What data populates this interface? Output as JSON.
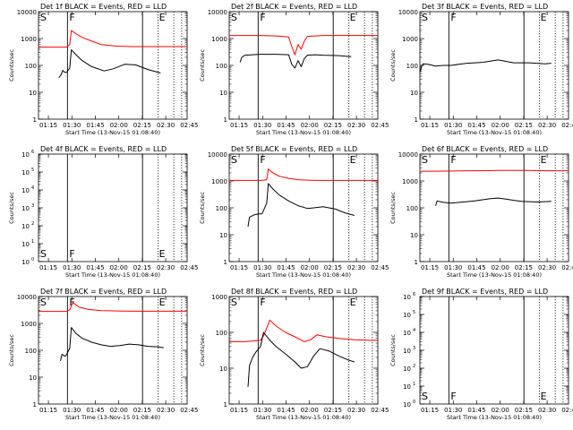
{
  "colors": {
    "events": "#000000",
    "lld": "#ff0000",
    "axes": "#000000",
    "background": "#ffffff"
  },
  "xlabel": "Start Time (13-Nov-15 01:08:40)",
  "ylabel": "Counts/sec",
  "xticks": [
    "01:15",
    "01:30",
    "01:45",
    "02:00",
    "02:15",
    "02:30",
    "02:45"
  ],
  "xrange_minutes": [
    0,
    95
  ],
  "tick_minutes": [
    6.33,
    21.33,
    36.33,
    51.33,
    66.33,
    81.33,
    96.33
  ],
  "markers": {
    "start_label": "S",
    "flare_label": "F",
    "end_label": "E"
  },
  "vlines": {
    "solid_minutes": [
      18.5,
      66.5
    ],
    "dotted_minutes": [
      76.5,
      86.5,
      91.5
    ]
  },
  "chart_data": [
    {
      "type": "line",
      "title": "Det 1f BLACK = Events, RED = LLD",
      "scale": "log",
      "ylim": [
        1,
        10000
      ],
      "yticks": [
        "1",
        "10",
        "100",
        "1000",
        "10000"
      ],
      "markers_shown": [
        "S",
        "F",
        "E"
      ],
      "series": [
        {
          "name": "LLD",
          "x": [
            0,
            9,
            12,
            14,
            18,
            20,
            21,
            24,
            28,
            34,
            40,
            50,
            60,
            70,
            80,
            90,
            95
          ],
          "y": [
            480,
            480,
            480,
            480,
            480,
            600,
            2000,
            1500,
            1100,
            800,
            600,
            520,
            500,
            500,
            500,
            500,
            500
          ]
        },
        {
          "name": "Events",
          "x": [
            13,
            14.5,
            15.5,
            16,
            17,
            18,
            20,
            21,
            24,
            28,
            34,
            42,
            48,
            55,
            62,
            70,
            78
          ],
          "y": [
            35,
            45,
            65,
            60,
            55,
            55,
            80,
            380,
            250,
            150,
            90,
            62,
            75,
            110,
            105,
            70,
            52
          ]
        }
      ]
    },
    {
      "type": "line",
      "title": "Det 2f BLACK = Events, RED = LLD",
      "scale": "log",
      "ylim": [
        1,
        10000
      ],
      "yticks": [
        "1",
        "10",
        "100",
        "1000",
        "10000"
      ],
      "markers_shown": [
        "S",
        "F",
        "E"
      ],
      "series": [
        {
          "name": "LLD",
          "x": [
            0,
            10,
            20,
            30,
            38,
            40,
            42,
            44,
            46,
            48,
            50,
            60,
            70,
            80,
            95
          ],
          "y": [
            1300,
            1300,
            1300,
            1250,
            1150,
            500,
            250,
            600,
            400,
            800,
            1200,
            1300,
            1300,
            1300,
            1300
          ]
        },
        {
          "name": "Events",
          "x": [
            7,
            8,
            10,
            15,
            20,
            30,
            38,
            40,
            42,
            44,
            46,
            48,
            50,
            55,
            60,
            70,
            78
          ],
          "y": [
            130,
            200,
            240,
            250,
            260,
            260,
            250,
            110,
            80,
            150,
            90,
            180,
            240,
            250,
            240,
            230,
            210
          ]
        }
      ]
    },
    {
      "type": "line",
      "title": "Det 3f BLACK = Events, RED = LLD",
      "scale": "log",
      "ylim": [
        1,
        10000
      ],
      "yticks": [
        "1",
        "10",
        "100",
        "1000",
        "10000"
      ],
      "markers_shown": [
        "S",
        "F",
        "E"
      ],
      "series": [
        {
          "name": "Events",
          "x": [
            0,
            1,
            2,
            5,
            10,
            15,
            20,
            25,
            30,
            40,
            50,
            60,
            70,
            80,
            84
          ],
          "y": [
            55,
            90,
            115,
            110,
            95,
            100,
            100,
            110,
            120,
            130,
            160,
            125,
            125,
            115,
            120
          ]
        }
      ]
    },
    {
      "type": "line",
      "title": "Det 4f BLACK = Events, RED = LLD",
      "scale": "log",
      "ylim": [
        1,
        1000000
      ],
      "yticks": [
        "10^0",
        "10^1",
        "10^2",
        "10^3",
        "10^4",
        "10^5",
        "10^6"
      ],
      "markers_shown": [
        "S",
        "F",
        "E"
      ],
      "series": []
    },
    {
      "type": "line",
      "title": "Det 5f BLACK = Events, RED = LLD",
      "scale": "log",
      "ylim": [
        1,
        10000
      ],
      "yticks": [
        "1",
        "10",
        "100",
        "1000",
        "10000"
      ],
      "markers_shown": [
        "S",
        "F",
        "E"
      ],
      "series": [
        {
          "name": "LLD",
          "x": [
            0,
            10,
            20,
            24,
            25,
            28,
            32,
            38,
            45,
            55,
            65,
            75,
            85,
            95
          ],
          "y": [
            1050,
            1050,
            1050,
            1100,
            2800,
            2000,
            1500,
            1250,
            1100,
            1050,
            1050,
            1050,
            1050,
            1050
          ]
        },
        {
          "name": "Events",
          "x": [
            12,
            13,
            16,
            19,
            21,
            24,
            25,
            28,
            32,
            38,
            44,
            50,
            54,
            60,
            68,
            74,
            80
          ],
          "y": [
            20,
            45,
            55,
            60,
            60,
            150,
            800,
            500,
            300,
            180,
            120,
            95,
            100,
            110,
            90,
            65,
            52
          ]
        }
      ]
    },
    {
      "type": "line",
      "title": "Det 6f BLACK = Events, RED = LLD",
      "scale": "log",
      "ylim": [
        1,
        10000
      ],
      "yticks": [
        "1",
        "10",
        "100",
        "1000",
        "10000"
      ],
      "markers_shown": [
        "S",
        "F",
        "E"
      ],
      "series": [
        {
          "name": "LLD",
          "x": [
            0,
            10,
            20,
            30,
            40,
            50,
            60,
            70,
            80,
            90,
            95
          ],
          "y": [
            2300,
            2300,
            2350,
            2400,
            2400,
            2450,
            2450,
            2450,
            2400,
            2400,
            2400
          ]
        },
        {
          "name": "Events",
          "x": [
            10,
            11,
            15,
            20,
            25,
            30,
            35,
            40,
            45,
            50,
            55,
            60,
            65,
            70,
            75,
            80,
            84
          ],
          "y": [
            120,
            180,
            160,
            150,
            160,
            170,
            180,
            200,
            220,
            230,
            210,
            190,
            175,
            170,
            165,
            170,
            175
          ]
        }
      ]
    },
    {
      "type": "line",
      "title": "Det 7f BLACK = Events, RED = LLD",
      "scale": "log",
      "ylim": [
        1,
        10000
      ],
      "yticks": [
        "1",
        "10",
        "100",
        "1000",
        "10000"
      ],
      "markers_shown": [
        "S",
        "F",
        "E"
      ],
      "series": [
        {
          "name": "LLD",
          "x": [
            0,
            10,
            18,
            20,
            22,
            26,
            32,
            40,
            50,
            60,
            70,
            80,
            95
          ],
          "y": [
            2800,
            2800,
            2800,
            3200,
            6000,
            4000,
            3300,
            3000,
            2900,
            2850,
            2850,
            2850,
            2850
          ]
        },
        {
          "name": "Events",
          "x": [
            14,
            15,
            17,
            18,
            20,
            21,
            24,
            28,
            34,
            40,
            46,
            52,
            58,
            64,
            70,
            76,
            80
          ],
          "y": [
            40,
            70,
            60,
            70,
            120,
            700,
            420,
            280,
            200,
            160,
            140,
            150,
            170,
            160,
            140,
            135,
            125
          ]
        }
      ]
    },
    {
      "type": "line",
      "title": "Det 8f BLACK = Events, RED = LLD",
      "scale": "log",
      "ylim": [
        1,
        1000
      ],
      "yticks": [
        "1",
        "10",
        "100",
        "1000"
      ],
      "markers_shown": [
        "S",
        "F",
        "E"
      ],
      "series": [
        {
          "name": "LLD",
          "x": [
            0,
            10,
            20,
            22,
            26,
            30,
            36,
            42,
            48,
            52,
            56,
            62,
            70,
            80,
            90,
            95
          ],
          "y": [
            55,
            55,
            60,
            80,
            220,
            150,
            100,
            75,
            55,
            62,
            85,
            75,
            68,
            62,
            60,
            60
          ]
        },
        {
          "name": "Events",
          "x": [
            12,
            13,
            15,
            17,
            20,
            22,
            26,
            30,
            36,
            42,
            46,
            50,
            54,
            58,
            64,
            70,
            76,
            80
          ],
          "y": [
            3,
            12,
            20,
            28,
            40,
            100,
            60,
            40,
            25,
            15,
            10,
            11,
            22,
            35,
            30,
            22,
            17,
            15
          ]
        }
      ]
    },
    {
      "type": "line",
      "title": "Det 9f BLACK = Events, RED = LLD",
      "scale": "log",
      "ylim": [
        1,
        1000000
      ],
      "yticks": [
        "10^0",
        "10^1",
        "10^2",
        "10^3",
        "10^4",
        "10^5",
        "10^6"
      ],
      "markers_shown": [
        "S",
        "F",
        "E"
      ],
      "series": []
    }
  ]
}
